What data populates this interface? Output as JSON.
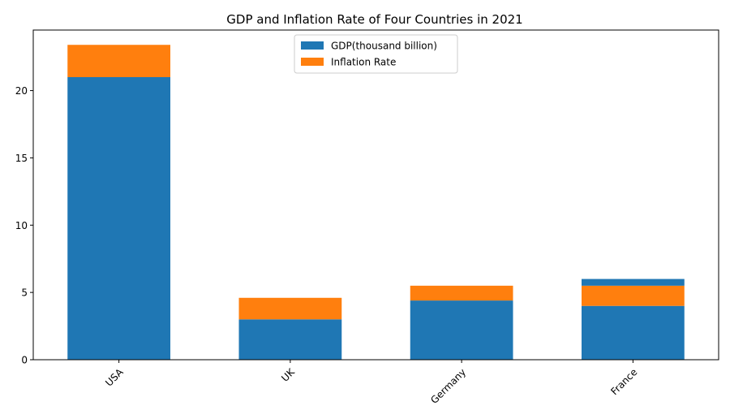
{
  "chart_data": {
    "type": "bar",
    "stacked": true,
    "title": "GDP and Inflation Rate of Four Countries in 2021",
    "xlabel": "",
    "ylabel": "",
    "categories": [
      "USA",
      "UK",
      "Germany",
      "France"
    ],
    "series": [
      {
        "name": "GDP(thousand billion)",
        "color": "#1f77b4",
        "values": [
          21.0,
          3.0,
          4.4,
          4.0
        ]
      },
      {
        "name": "Inflation Rate",
        "color": "#ff7f0e",
        "values": [
          2.4,
          1.6,
          1.1,
          1.5
        ]
      }
    ],
    "extra_segments": [
      {
        "category": "France",
        "base": 5.5,
        "value": 0.5,
        "color": "#1f77b4"
      }
    ],
    "ylim": [
      0,
      24.5
    ],
    "yticks": [
      0,
      5,
      10,
      15,
      20
    ],
    "xtick_rotation": 45,
    "grid": false,
    "legend_position": "upper-center"
  }
}
